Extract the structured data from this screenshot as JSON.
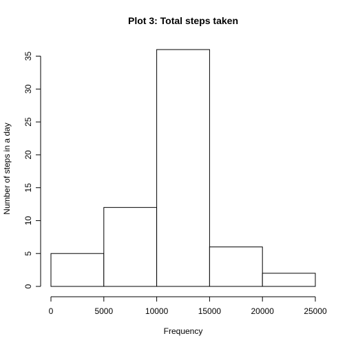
{
  "chart_data": {
    "type": "bar",
    "title": "Plot 3: Total steps taken",
    "xlabel": "Frequency",
    "ylabel": "Number of steps in a day",
    "bins": [
      {
        "x0": 0,
        "x1": 5000,
        "value": 5
      },
      {
        "x0": 5000,
        "x1": 10000,
        "value": 12
      },
      {
        "x0": 10000,
        "x1": 15000,
        "value": 36
      },
      {
        "x0": 15000,
        "x1": 20000,
        "value": 6
      },
      {
        "x0": 20000,
        "x1": 25000,
        "value": 2
      }
    ],
    "xlim": [
      0,
      25000
    ],
    "ylim": [
      0,
      36
    ],
    "xticks": [
      0,
      5000,
      10000,
      15000,
      20000,
      25000
    ],
    "yticks": [
      0,
      5,
      10,
      15,
      20,
      25,
      30,
      35
    ],
    "grid": false,
    "legend": "none"
  }
}
